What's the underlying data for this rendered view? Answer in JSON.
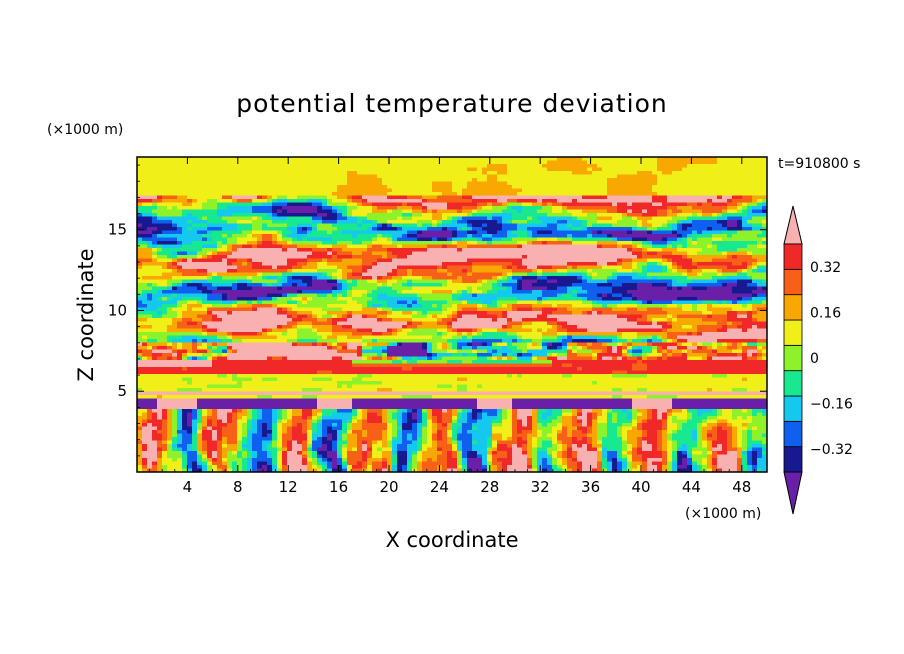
{
  "chart_data": {
    "type": "heatmap",
    "title": "potential temperature deviation",
    "xlabel": "X coordinate",
    "ylabel": "Z coordinate",
    "x_unit": "(×1000 m)",
    "y_unit": "(×1000 m)",
    "time_label": "t=910800 s",
    "xlim": [
      0,
      50
    ],
    "ylim": [
      0,
      19.5
    ],
    "x_ticks": [
      4,
      8,
      12,
      16,
      20,
      24,
      28,
      32,
      36,
      40,
      44,
      48
    ],
    "y_ticks": [
      5,
      10,
      15
    ],
    "colorbar": {
      "levels": [
        -0.4,
        -0.32,
        -0.24,
        -0.16,
        -0.08,
        0,
        0.08,
        0.16,
        0.24,
        0.32,
        0.4
      ],
      "labels": [
        "0.32",
        "0.16",
        "0",
        "−0.16",
        "−0.32"
      ],
      "label_values": [
        0.32,
        0.16,
        0,
        -0.16,
        -0.32
      ],
      "colors": [
        "#6a1fa8",
        "#181890",
        "#1060f0",
        "#14c8f0",
        "#18e890",
        "#8ef22a",
        "#f0f018",
        "#f8a800",
        "#f86018",
        "#f02828",
        "#f8b0b0"
      ],
      "extend": "both"
    },
    "bands": [
      {
        "z": [
          0,
          1.0
        ],
        "desc": "near-surface mixed"
      },
      {
        "z": [
          4.0,
          4.6
        ],
        "desc": "purple cold layer"
      },
      {
        "z": [
          6.0,
          7.0
        ],
        "desc": "red/orange warm layer"
      }
    ]
  }
}
